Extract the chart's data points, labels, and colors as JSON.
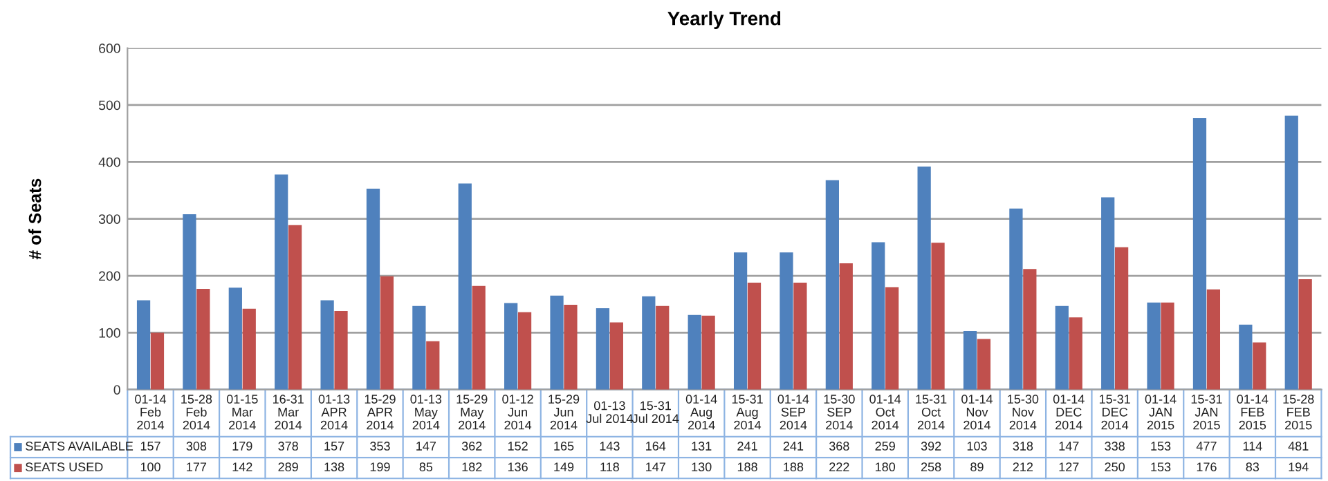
{
  "chart_data": {
    "type": "bar",
    "title": "Yearly Trend",
    "ylabel": "# of Seats",
    "categories": [
      "01-14\nFeb\n2014",
      "15-28\nFeb\n2014",
      "01-15\nMar\n2014",
      "16-31\nMar\n2014",
      "01-13\nAPR\n2014",
      "15-29\nAPR\n2014",
      "01-13\nMay\n2014",
      "15-29\nMay\n2014",
      "01-12\nJun\n2014",
      "15-29\nJun\n2014",
      "01-13\nJul 2014",
      "15-31\nJul 2014",
      "01-14\nAug\n2014",
      "15-31\nAug\n2014",
      "01-14\nSEP\n2014",
      "15-30\nSEP\n2014",
      "01-14\nOct\n2014",
      "15-31\nOct\n2014",
      "01-14\nNov\n2014",
      "15-30\nNov\n2014",
      "01-14\nDEC\n2014",
      "15-31\nDEC\n2014",
      "01-14\nJAN\n2015",
      "15-31\nJAN\n2015",
      "01-14\nFEB\n2015",
      "15-28\nFEB\n2015"
    ],
    "series": [
      {
        "name": "SEATS AVAILABLE",
        "color": "#4f81bd",
        "values": [
          157,
          308,
          179,
          378,
          157,
          353,
          147,
          362,
          152,
          165,
          143,
          164,
          131,
          241,
          241,
          368,
          259,
          392,
          103,
          318,
          147,
          338,
          153,
          477,
          114,
          481
        ]
      },
      {
        "name": "SEATS USED",
        "color": "#c0504d",
        "values": [
          100,
          177,
          142,
          289,
          138,
          199,
          85,
          182,
          136,
          149,
          118,
          147,
          130,
          188,
          188,
          222,
          180,
          258,
          89,
          212,
          127,
          250,
          153,
          176,
          83,
          194
        ]
      }
    ],
    "ylim": [
      0,
      600
    ],
    "yticks": [
      0,
      100,
      200,
      300,
      400,
      500,
      600
    ],
    "grid": "y",
    "legend": "bottom",
    "data_labels": true
  }
}
